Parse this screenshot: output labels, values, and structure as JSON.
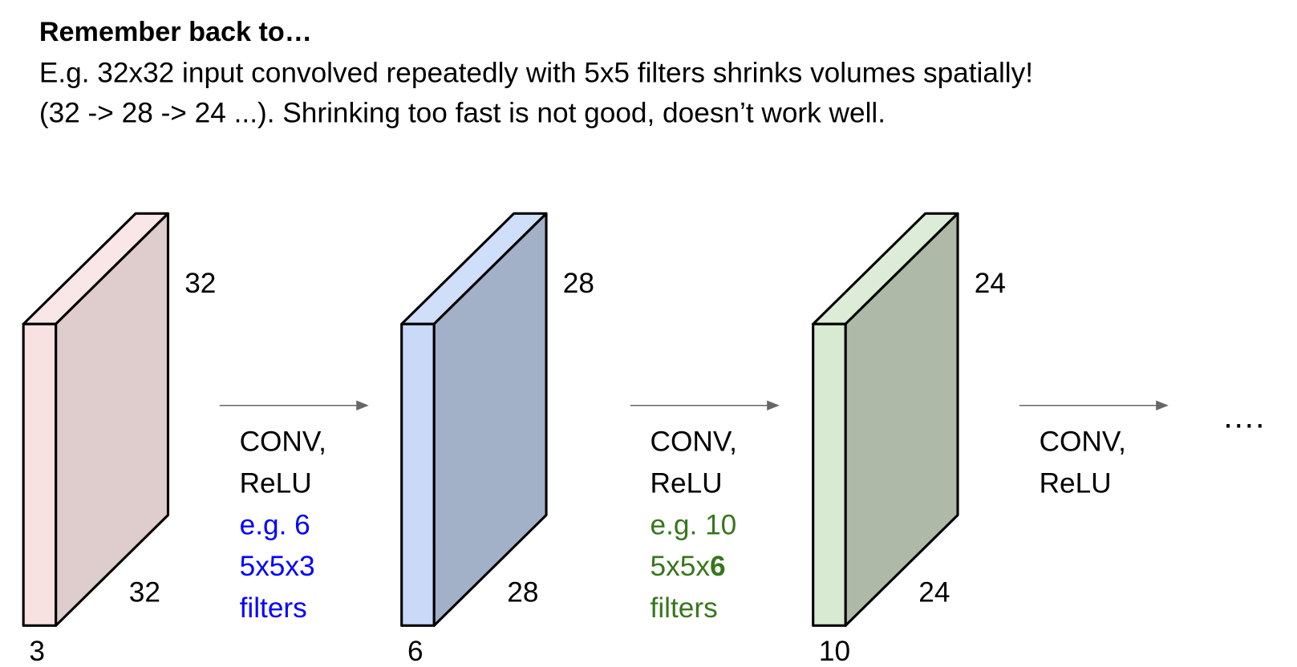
{
  "title": "Remember back to…",
  "text_lines": [
    "E.g. 32x32 input convolved repeatedly with 5x5 filters shrinks volumes spatially!",
    "(32 -> 28 -> 24 ...). Shrinking too fast is not good, doesn’t work well."
  ],
  "volumes": [
    {
      "height": "32",
      "width": "32",
      "depth": "3"
    },
    {
      "height": "28",
      "width": "28",
      "depth": "6"
    },
    {
      "height": "24",
      "width": "24",
      "depth": "10"
    }
  ],
  "ops": [
    {
      "lines": [
        "CONV,",
        "ReLU"
      ],
      "note": {
        "line1": "e.g. 6",
        "line2": "5x5x3",
        "line3": "filters"
      }
    },
    {
      "lines": [
        "CONV,",
        "ReLU"
      ],
      "note": {
        "line1": "e.g. 10",
        "line2": "5x5x",
        "line2_bold": "6",
        "line3": "filters"
      }
    },
    {
      "lines": [
        "CONV,",
        "ReLU"
      ]
    }
  ],
  "ellipsis": "…."
}
